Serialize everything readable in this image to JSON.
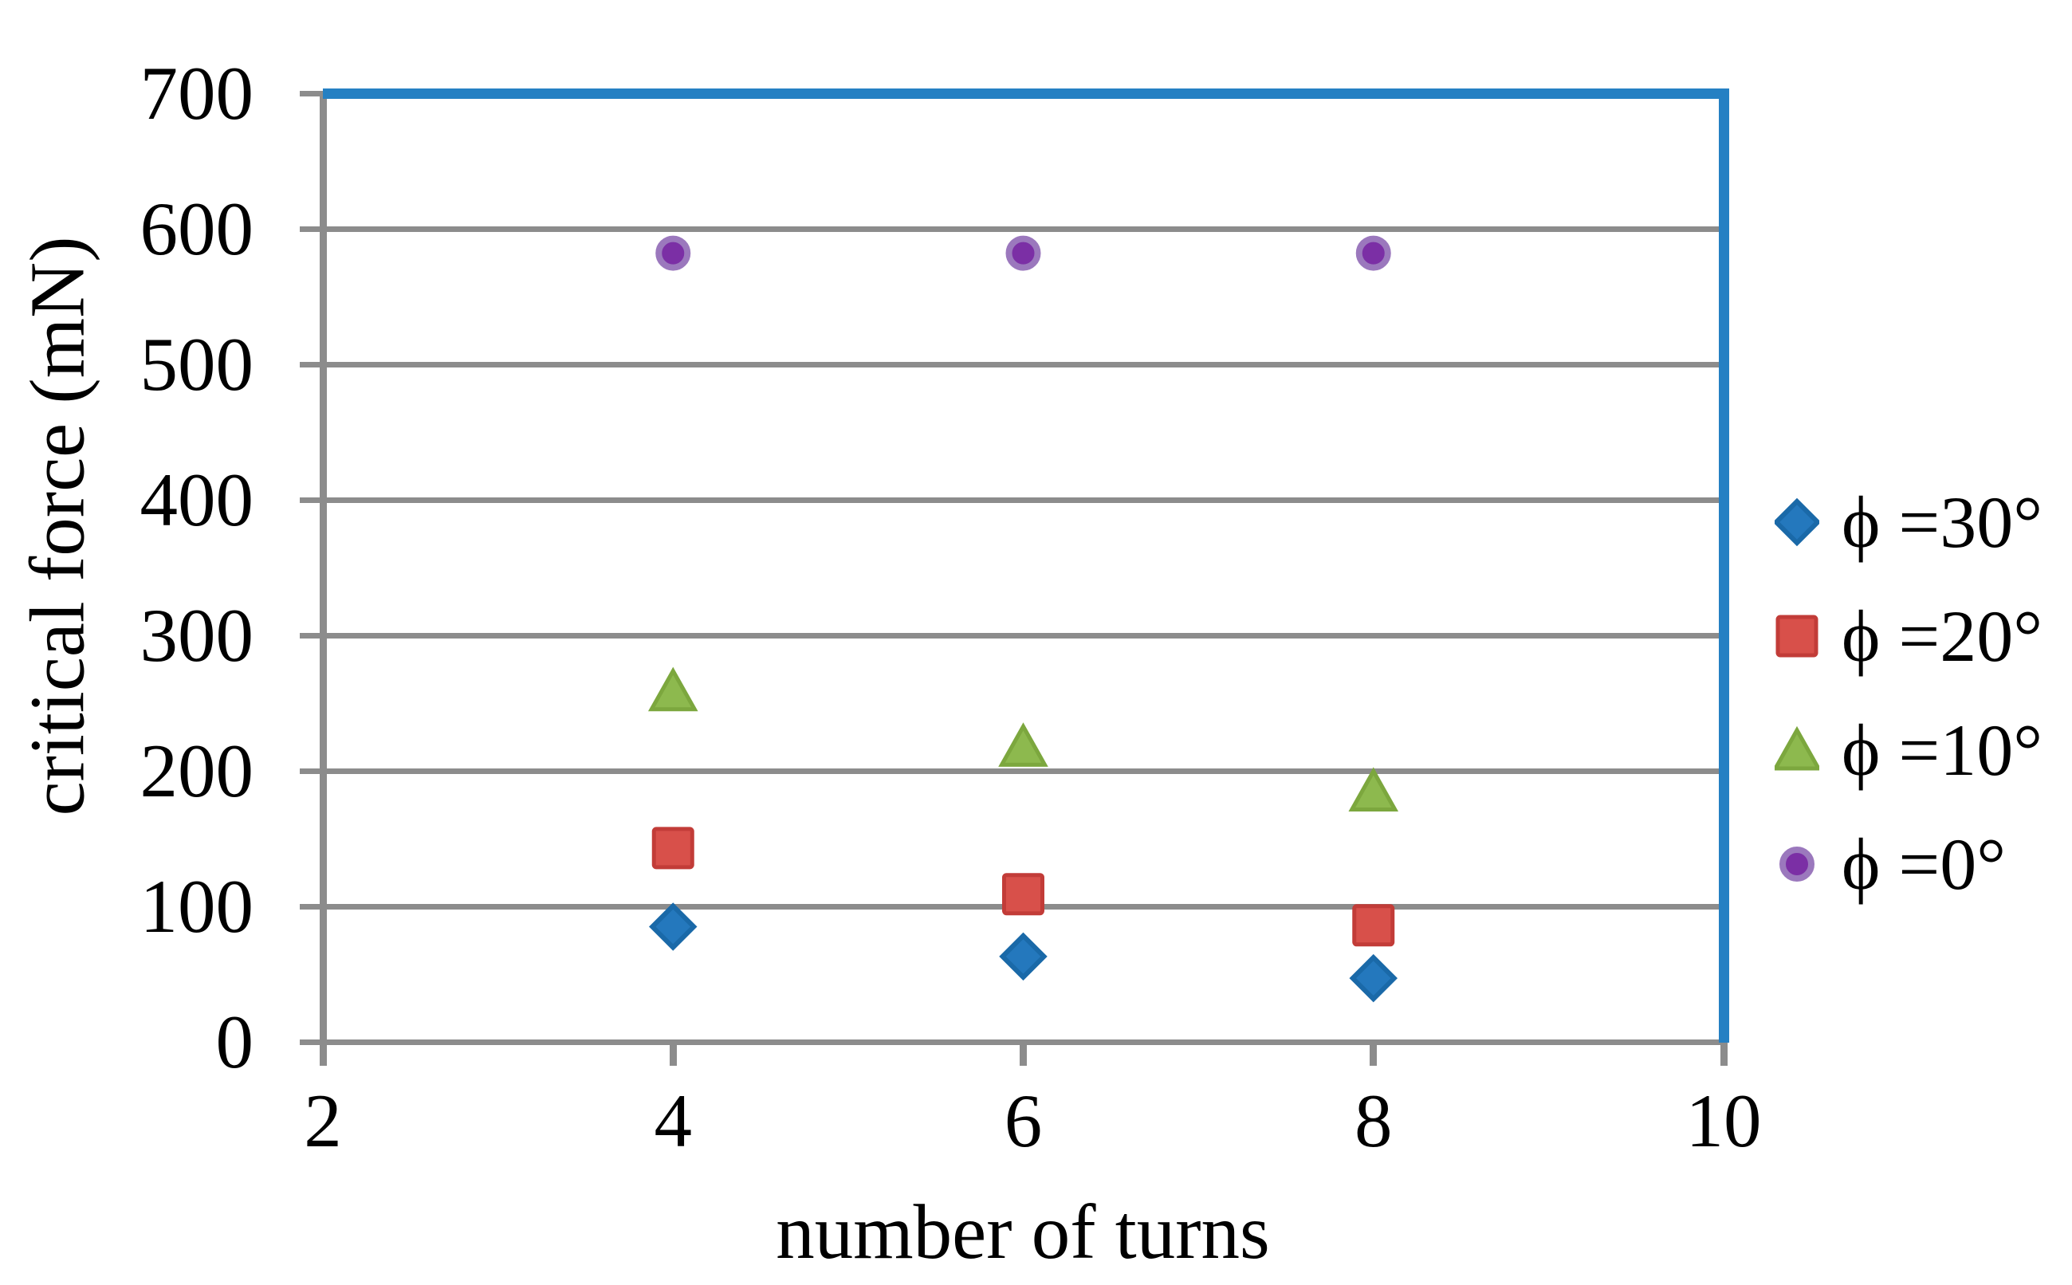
{
  "chart_data": {
    "type": "scatter",
    "title": "",
    "xlabel": "number of turns",
    "ylabel": "critical force (mN)",
    "xlim": [
      2,
      10
    ],
    "ylim": [
      0,
      700
    ],
    "xticks": [
      2,
      4,
      6,
      8,
      10
    ],
    "yticks": [
      0,
      100,
      200,
      300,
      400,
      500,
      600,
      700
    ],
    "x": [
      4,
      6,
      8
    ],
    "series": [
      {
        "name": "ϕ =30°",
        "marker": "diamond",
        "fill": "#2478BD",
        "edge": "#1A69A8",
        "values": [
          85,
          63,
          47
        ]
      },
      {
        "name": "ϕ =20°",
        "marker": "square",
        "fill": "#D8504A",
        "edge": "#C23C38",
        "values": [
          143,
          109,
          86
        ]
      },
      {
        "name": "ϕ =10°",
        "marker": "triangle",
        "fill": "#8DB94E",
        "edge": "#7CA73E",
        "values": [
          259,
          218,
          185
        ]
      },
      {
        "name": "ϕ =0°",
        "marker": "circle",
        "fill": "#7B2FA5",
        "edge": "#9B78BD",
        "values": [
          582,
          582,
          582
        ]
      }
    ],
    "legend_position": "right",
    "grid": "horizontal",
    "gridline_color": "#8C8C8C",
    "axis_color": "#8C8C8C",
    "plot_border_color": "#2580C3",
    "text_color": "#000000"
  }
}
